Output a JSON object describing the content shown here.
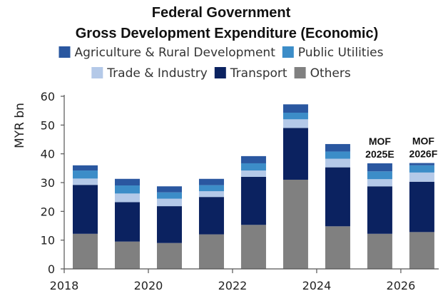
{
  "chart_data": {
    "type": "bar",
    "stacked": true,
    "title": "Federal Government",
    "subtitle": "Gross Development Expenditure (Economic)",
    "ylabel": "MYR bn",
    "xlabel": "",
    "ylim": [
      0,
      60
    ],
    "yticks": [
      "0",
      "10",
      "20",
      "30",
      "40",
      "50",
      "60"
    ],
    "x_range": [
      2018,
      2026.9
    ],
    "xticks": [
      {
        "value": 2018,
        "label": "2018"
      },
      {
        "value": 2020,
        "label": "2020"
      },
      {
        "value": 2022,
        "label": "2022"
      },
      {
        "value": 2024,
        "label": "2024"
      },
      {
        "value": 2026,
        "label": "2026"
      }
    ],
    "x": [
      2018.5,
      2019.5,
      2020.5,
      2021.5,
      2022.5,
      2023.5,
      2024.5,
      2025.5,
      2026.5
    ],
    "legend_position": "top",
    "grid": false,
    "series": [
      {
        "name": "Others",
        "color": "#808080",
        "values": [
          12.2,
          9.5,
          9.0,
          12.0,
          15.3,
          31.0,
          14.8,
          12.2,
          12.8
        ]
      },
      {
        "name": "Transport",
        "color": "#0b2260",
        "values": [
          17.0,
          13.7,
          12.8,
          13.0,
          16.7,
          18.0,
          20.5,
          16.5,
          17.5
        ]
      },
      {
        "name": "Trade & Industry",
        "color": "#b4c9e8",
        "values": [
          2.2,
          3.0,
          2.6,
          2.0,
          2.2,
          3.0,
          3.0,
          2.5,
          3.2
        ]
      },
      {
        "name": "Public Utilities",
        "color": "#3c8dc8",
        "values": [
          2.8,
          2.8,
          2.2,
          2.1,
          2.5,
          2.3,
          2.5,
          2.7,
          2.5
        ]
      },
      {
        "name": "Agriculture & Rural Development",
        "color": "#2a57a0",
        "values": [
          1.8,
          2.3,
          2.1,
          2.2,
          2.5,
          2.9,
          2.6,
          2.8,
          0.8
        ]
      }
    ],
    "legend_order": [
      "Agriculture & Rural Development",
      "Public Utilities",
      "Trade & Industry",
      "Transport",
      "Others"
    ],
    "annotations": [
      {
        "x": 2025.5,
        "lines": [
          "MOF",
          "2025E"
        ]
      },
      {
        "x": 2026.5,
        "lines": [
          "MOF",
          "2026F"
        ]
      }
    ]
  }
}
